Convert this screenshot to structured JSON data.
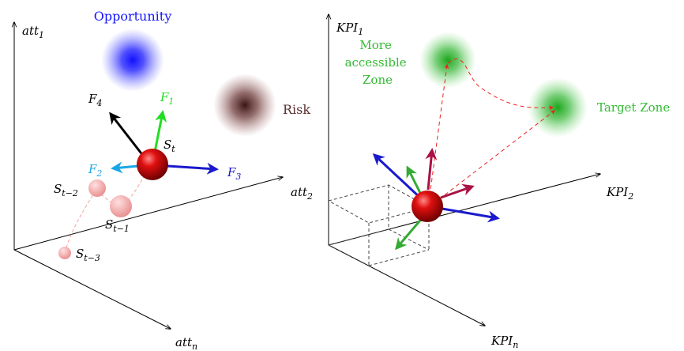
{
  "left": {
    "axes": {
      "y": {
        "base": "att",
        "sub": "1"
      },
      "x": {
        "base": "att",
        "sub": "2"
      },
      "z": {
        "base": "att",
        "sub": "n"
      }
    },
    "opportunity": {
      "label": "Opportunity",
      "color": "#1414ff"
    },
    "risk": {
      "label": "Risk",
      "color": "#4a1c1c"
    },
    "state": {
      "base": "S",
      "sub": "t"
    },
    "history": [
      {
        "base": "S",
        "sub": "t−2"
      },
      {
        "base": "S",
        "sub": "t−1"
      },
      {
        "base": "S",
        "sub": "t−3"
      }
    ],
    "forces": [
      {
        "base": "F",
        "sub": "1",
        "color": "#22dd22"
      },
      {
        "base": "F",
        "sub": "2",
        "color": "#1aa6e6"
      },
      {
        "base": "F",
        "sub": "3",
        "color": "#1a1acc"
      },
      {
        "base": "F",
        "sub": "4",
        "color": "#000000"
      }
    ]
  },
  "right": {
    "axes": {
      "y": {
        "base": "KPI",
        "sub": "1"
      },
      "x": {
        "base": "KPI",
        "sub": "2"
      },
      "z": {
        "base": "KPI",
        "sub": "n"
      }
    },
    "accessible_zone": {
      "lines": [
        "More",
        "accessible",
        "Zone"
      ],
      "color": "#33bb33"
    },
    "target_zone": {
      "label": "Target Zone",
      "color": "#33bb33"
    }
  }
}
